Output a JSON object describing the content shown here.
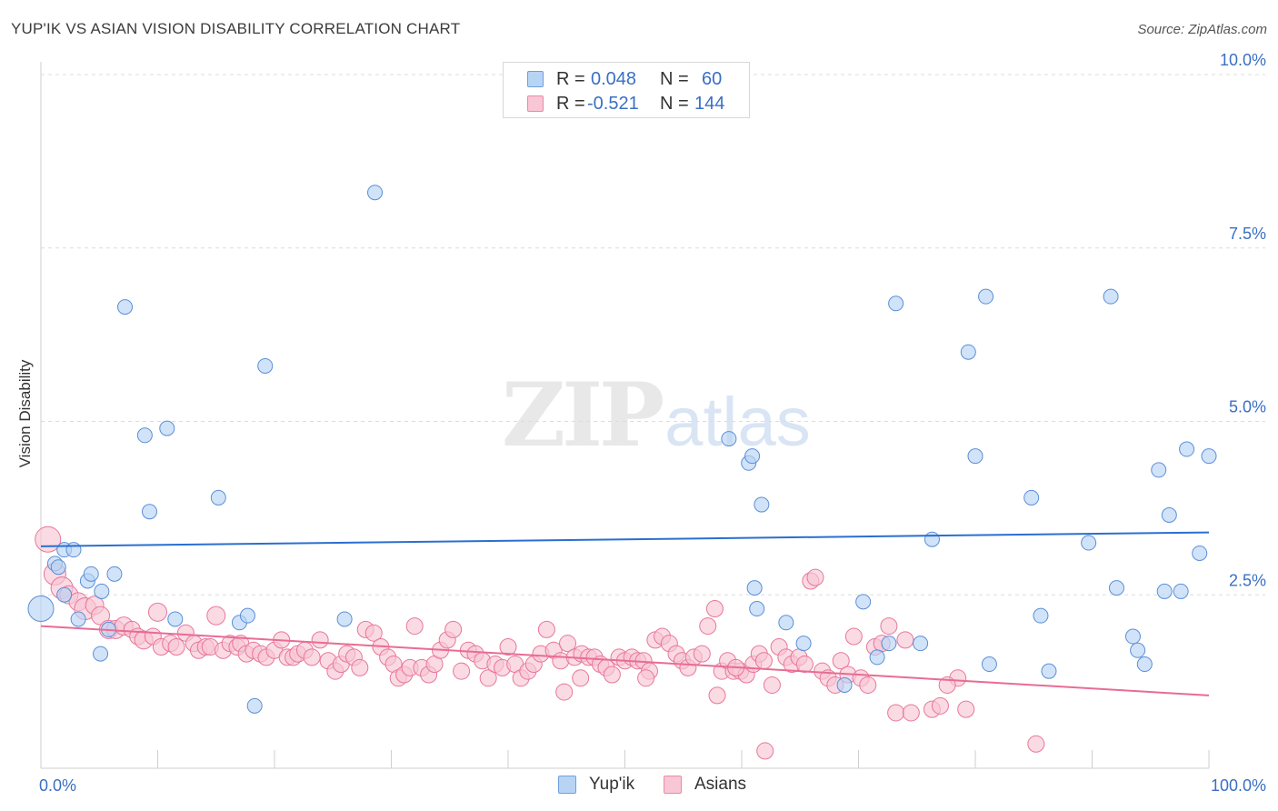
{
  "title": "YUP'IK VS ASIAN VISION DISABILITY CORRELATION CHART",
  "source": "Source: ZipAtlas.com",
  "watermark": {
    "zip": "ZIP",
    "atlas": "atlas"
  },
  "legend": {
    "rows": [
      {
        "r_label": "R =",
        "r_value": "0.048",
        "n_label": "N =",
        "n_value": "60"
      },
      {
        "r_label": "R =",
        "r_value": "-0.521",
        "n_label": "N =",
        "n_value": "144"
      }
    ]
  },
  "bottom_legend": [
    "Yup'ik",
    "Asians"
  ],
  "colors": {
    "blue": "#5b8fd8",
    "blue_fill": "#b8d4f4",
    "pink": "#e8779a",
    "pink_fill": "#f8c6d4",
    "blue_line": "#2a6fd0",
    "pink_line": "#e86c95",
    "tick_color": "#3a6fc4"
  },
  "chart_data": {
    "type": "scatter",
    "title": "YUP'IK VS ASIAN VISION DISABILITY CORRELATION CHART",
    "xlabel": "",
    "ylabel": "Vision Disability",
    "xlim": [
      0,
      100
    ],
    "ylim": [
      0,
      10.0
    ],
    "x_tick_labels": [
      "0.0%",
      "100.0%"
    ],
    "y_tick_labels": [
      "2.5%",
      "5.0%",
      "7.5%",
      "10.0%"
    ],
    "y_ticks": [
      2.5,
      5.0,
      7.5,
      10.0
    ],
    "grid": "horizontal dashed",
    "legend_placement": "top-center",
    "series": [
      {
        "name": "Yup'ik",
        "trend": [
          [
            0,
            3.2
          ],
          [
            100,
            3.4
          ]
        ],
        "points": [
          [
            0.0,
            2.3,
            14
          ],
          [
            1.2,
            2.95,
            8
          ],
          [
            1.5,
            2.9,
            8
          ],
          [
            2.0,
            3.15,
            8
          ],
          [
            2.8,
            3.15,
            8
          ],
          [
            2.0,
            2.5,
            8
          ],
          [
            3.2,
            2.15,
            8
          ],
          [
            4.0,
            2.7,
            8
          ],
          [
            4.3,
            2.8,
            8
          ],
          [
            5.2,
            2.55,
            8
          ],
          [
            5.8,
            2.0,
            8
          ],
          [
            5.1,
            1.65,
            8
          ],
          [
            6.3,
            2.8,
            8
          ],
          [
            7.2,
            6.65,
            8
          ],
          [
            8.9,
            4.8,
            8
          ],
          [
            9.3,
            3.7,
            8
          ],
          [
            10.8,
            4.9,
            8
          ],
          [
            11.5,
            2.15,
            8
          ],
          [
            15.2,
            3.9,
            8
          ],
          [
            17.0,
            2.1,
            8
          ],
          [
            17.7,
            2.2,
            8
          ],
          [
            18.3,
            0.9,
            8
          ],
          [
            19.2,
            5.8,
            8
          ],
          [
            26.0,
            2.15,
            8
          ],
          [
            28.6,
            8.3,
            8
          ],
          [
            61.1,
            2.6,
            8
          ],
          [
            58.9,
            4.75,
            8
          ],
          [
            60.6,
            4.4,
            8
          ],
          [
            60.9,
            4.5,
            8
          ],
          [
            61.3,
            2.3,
            8
          ],
          [
            61.7,
            3.8,
            8
          ],
          [
            63.8,
            2.1,
            8
          ],
          [
            65.3,
            1.8,
            8
          ],
          [
            68.8,
            1.2,
            8
          ],
          [
            70.4,
            2.4,
            8
          ],
          [
            71.6,
            1.6,
            8
          ],
          [
            72.6,
            1.8,
            8
          ],
          [
            73.2,
            6.7,
            8
          ],
          [
            75.3,
            1.8,
            8
          ],
          [
            76.3,
            3.3,
            8
          ],
          [
            79.4,
            6.0,
            8
          ],
          [
            80.0,
            4.5,
            8
          ],
          [
            80.9,
            6.8,
            8
          ],
          [
            81.2,
            1.5,
            8
          ],
          [
            84.8,
            3.9,
            8
          ],
          [
            85.6,
            2.2,
            8
          ],
          [
            86.3,
            1.4,
            8
          ],
          [
            89.7,
            3.25,
            8
          ],
          [
            91.6,
            6.8,
            8
          ],
          [
            92.1,
            2.6,
            8
          ],
          [
            93.5,
            1.9,
            8
          ],
          [
            93.9,
            1.7,
            8
          ],
          [
            94.5,
            1.5,
            8
          ],
          [
            95.7,
            4.3,
            8
          ],
          [
            96.2,
            2.55,
            8
          ],
          [
            96.6,
            3.65,
            8
          ],
          [
            97.6,
            2.55,
            8
          ],
          [
            98.1,
            4.6,
            8
          ],
          [
            99.2,
            3.1,
            8
          ],
          [
            100.0,
            4.5,
            8
          ]
        ]
      },
      {
        "name": "Asians",
        "trend": [
          [
            0,
            2.05
          ],
          [
            100,
            1.05
          ]
        ],
        "points": [
          [
            0.6,
            3.3,
            14
          ],
          [
            1.2,
            2.8,
            12
          ],
          [
            1.8,
            2.6,
            12
          ],
          [
            2.4,
            2.5,
            10
          ],
          [
            3.2,
            2.4,
            10
          ],
          [
            3.8,
            2.3,
            12
          ],
          [
            4.6,
            2.35,
            10
          ],
          [
            5.1,
            2.2,
            10
          ],
          [
            5.8,
            2.0,
            10
          ],
          [
            6.4,
            2.0,
            10
          ],
          [
            7.1,
            2.05,
            10
          ],
          [
            7.8,
            2.0,
            9
          ],
          [
            8.3,
            1.9,
            9
          ],
          [
            8.8,
            1.85,
            10
          ],
          [
            9.6,
            1.9,
            9
          ],
          [
            10.0,
            2.25,
            10
          ],
          [
            10.3,
            1.75,
            9
          ],
          [
            11.1,
            1.8,
            9
          ],
          [
            11.6,
            1.75,
            9
          ],
          [
            12.4,
            1.95,
            9
          ],
          [
            13.1,
            1.8,
            9
          ],
          [
            13.5,
            1.7,
            9
          ],
          [
            14.1,
            1.75,
            9
          ],
          [
            14.5,
            1.75,
            9
          ],
          [
            15.0,
            2.2,
            10
          ],
          [
            15.6,
            1.7,
            9
          ],
          [
            16.2,
            1.8,
            9
          ],
          [
            16.8,
            1.75,
            9
          ],
          [
            17.1,
            1.8,
            9
          ],
          [
            17.6,
            1.65,
            9
          ],
          [
            18.2,
            1.7,
            9
          ],
          [
            18.8,
            1.65,
            9
          ],
          [
            19.3,
            1.6,
            9
          ],
          [
            20.0,
            1.7,
            9
          ],
          [
            20.6,
            1.85,
            9
          ],
          [
            21.1,
            1.6,
            9
          ],
          [
            21.6,
            1.6,
            9
          ],
          [
            22.0,
            1.65,
            9
          ],
          [
            22.6,
            1.7,
            9
          ],
          [
            23.2,
            1.6,
            9
          ],
          [
            23.9,
            1.85,
            9
          ],
          [
            24.6,
            1.55,
            9
          ],
          [
            25.2,
            1.4,
            9
          ],
          [
            25.7,
            1.5,
            9
          ],
          [
            26.2,
            1.65,
            9
          ],
          [
            26.8,
            1.6,
            9
          ],
          [
            27.3,
            1.45,
            9
          ],
          [
            27.8,
            2.0,
            9
          ],
          [
            28.5,
            1.95,
            9
          ],
          [
            29.1,
            1.75,
            9
          ],
          [
            29.7,
            1.6,
            9
          ],
          [
            30.2,
            1.5,
            9
          ],
          [
            30.6,
            1.3,
            9
          ],
          [
            31.1,
            1.35,
            9
          ],
          [
            31.6,
            1.45,
            9
          ],
          [
            32.0,
            2.05,
            9
          ],
          [
            32.6,
            1.45,
            9
          ],
          [
            33.2,
            1.35,
            9
          ],
          [
            33.7,
            1.5,
            9
          ],
          [
            34.2,
            1.7,
            9
          ],
          [
            34.8,
            1.85,
            9
          ],
          [
            35.3,
            2.0,
            9
          ],
          [
            36.0,
            1.4,
            9
          ],
          [
            36.6,
            1.7,
            9
          ],
          [
            37.2,
            1.65,
            9
          ],
          [
            37.8,
            1.55,
            9
          ],
          [
            38.3,
            1.3,
            9
          ],
          [
            38.9,
            1.5,
            9
          ],
          [
            39.5,
            1.45,
            9
          ],
          [
            40.0,
            1.75,
            9
          ],
          [
            40.6,
            1.5,
            9
          ],
          [
            41.1,
            1.3,
            9
          ],
          [
            41.7,
            1.4,
            9
          ],
          [
            42.2,
            1.5,
            9
          ],
          [
            42.8,
            1.65,
            9
          ],
          [
            43.3,
            2.0,
            9
          ],
          [
            43.9,
            1.7,
            9
          ],
          [
            44.5,
            1.55,
            9
          ],
          [
            45.1,
            1.8,
            9
          ],
          [
            45.7,
            1.6,
            9
          ],
          [
            46.3,
            1.65,
            9
          ],
          [
            46.9,
            1.6,
            9
          ],
          [
            47.4,
            1.6,
            9
          ],
          [
            47.9,
            1.5,
            9
          ],
          [
            48.4,
            1.45,
            9
          ],
          [
            48.9,
            1.35,
            9
          ],
          [
            49.5,
            1.6,
            9
          ],
          [
            50.0,
            1.55,
            9
          ],
          [
            50.6,
            1.6,
            9
          ],
          [
            51.1,
            1.55,
            9
          ],
          [
            51.6,
            1.55,
            9
          ],
          [
            52.1,
            1.4,
            9
          ],
          [
            52.6,
            1.85,
            9
          ],
          [
            53.2,
            1.9,
            9
          ],
          [
            53.8,
            1.8,
            9
          ],
          [
            54.4,
            1.65,
            9
          ],
          [
            54.9,
            1.55,
            9
          ],
          [
            55.4,
            1.45,
            9
          ],
          [
            55.9,
            1.6,
            9
          ],
          [
            56.6,
            1.65,
            9
          ],
          [
            57.1,
            2.05,
            9
          ],
          [
            57.7,
            2.3,
            9
          ],
          [
            58.3,
            1.4,
            9
          ],
          [
            58.8,
            1.55,
            9
          ],
          [
            59.3,
            1.4,
            9
          ],
          [
            59.9,
            1.4,
            9
          ],
          [
            60.4,
            1.35,
            9
          ],
          [
            61.0,
            1.5,
            9
          ],
          [
            61.5,
            1.65,
            9
          ],
          [
            61.9,
            1.55,
            9
          ],
          [
            62.6,
            1.2,
            9
          ],
          [
            63.2,
            1.75,
            9
          ],
          [
            63.8,
            1.6,
            9
          ],
          [
            64.3,
            1.5,
            9
          ],
          [
            64.9,
            1.6,
            9
          ],
          [
            65.4,
            1.5,
            9
          ],
          [
            65.9,
            2.7,
            9
          ],
          [
            66.3,
            2.75,
            9
          ],
          [
            66.9,
            1.4,
            9
          ],
          [
            67.4,
            1.3,
            9
          ],
          [
            68.0,
            1.2,
            9
          ],
          [
            68.5,
            1.55,
            9
          ],
          [
            69.1,
            1.35,
            9
          ],
          [
            69.6,
            1.9,
            9
          ],
          [
            70.2,
            1.3,
            9
          ],
          [
            70.8,
            1.2,
            9
          ],
          [
            71.4,
            1.75,
            9
          ],
          [
            72.0,
            1.8,
            9
          ],
          [
            72.6,
            2.05,
            9
          ],
          [
            73.2,
            0.8,
            9
          ],
          [
            74.5,
            0.8,
            9
          ],
          [
            76.3,
            0.85,
            9
          ],
          [
            77.0,
            0.9,
            9
          ],
          [
            78.5,
            1.3,
            9
          ],
          [
            79.2,
            0.85,
            9
          ],
          [
            74.0,
            1.85,
            9
          ],
          [
            59.5,
            1.45,
            9
          ],
          [
            51.8,
            1.3,
            9
          ],
          [
            46.2,
            1.3,
            9
          ],
          [
            44.8,
            1.1,
            9
          ],
          [
            57.9,
            1.05,
            9
          ],
          [
            62.0,
            0.25,
            9
          ],
          [
            85.2,
            0.35,
            9
          ],
          [
            77.6,
            1.2,
            9
          ]
        ]
      }
    ]
  }
}
